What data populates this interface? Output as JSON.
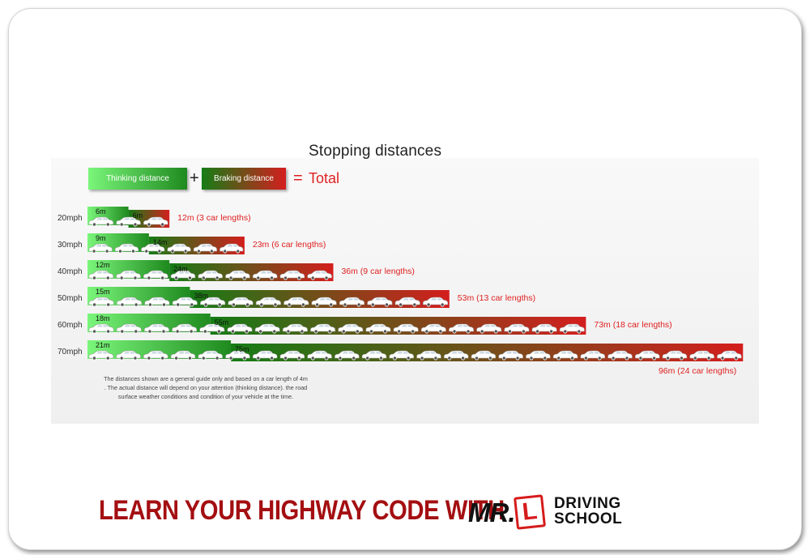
{
  "title": "Stopping distances",
  "legend": {
    "thinking_label": "Thinking distance",
    "plus": "+",
    "braking_label": "Braking distance",
    "equals": "=",
    "total_label": "Total"
  },
  "colors": {
    "thinking_start": "#7af67a",
    "thinking_end": "#1f8a1f",
    "braking_start": "#157c15",
    "braking_end": "#d41e1e",
    "total_text": "#e02020",
    "footer": "#a40f12"
  },
  "chart_data": {
    "type": "bar",
    "stacked": true,
    "orientation": "horizontal",
    "title": "Stopping distances",
    "categories": [
      "20mph",
      "30mph",
      "40mph",
      "50mph",
      "60mph",
      "70mph"
    ],
    "series": [
      {
        "name": "Thinking distance",
        "values": [
          6,
          9,
          12,
          15,
          18,
          21
        ],
        "labels": [
          "6m",
          "9m",
          "12m",
          "15m",
          "18m",
          "21m"
        ]
      },
      {
        "name": "Braking distance",
        "values": [
          6,
          14,
          24,
          38,
          55,
          75
        ],
        "labels": [
          "6m",
          "14m",
          "24m",
          "38m",
          "55m",
          "75m"
        ]
      }
    ],
    "totals": [
      12,
      23,
      36,
      53,
      73,
      96
    ],
    "total_labels": [
      "12m (3 car lengths)",
      "23m (6 car lengths)",
      "36m (9 car lengths)",
      "53m (13 car lengths)",
      "73m (18 car lengths)",
      "96m (24 car lengths)"
    ],
    "car_lengths": [
      3,
      6,
      9,
      13,
      18,
      24
    ],
    "grid": false
  },
  "note": {
    "line1": "The distances shown are a general guide only and based on a car length of 4m",
    "line2": ". The actual distance will depend on your attention (thinking distance). the road",
    "line3": "surface weather conditions and condition of your vehicle at the time."
  },
  "footer": {
    "headline": "LEARN YOUR HIGHWAY CODE WITH",
    "logo_mr": "MR.",
    "logo_l": "L",
    "logo_driving": "DRIVING",
    "logo_school": "SCHOOL"
  }
}
